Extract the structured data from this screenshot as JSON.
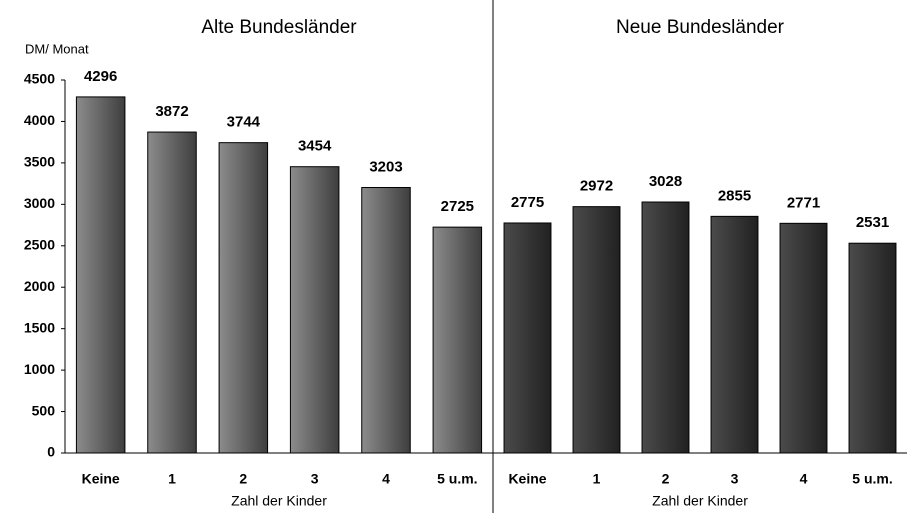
{
  "chart_data": [
    {
      "type": "bar",
      "title": "Alte Bundesländer",
      "y_label": "DM/ Monat",
      "x_label": "Zahl der Kinder",
      "categories": [
        "Keine",
        "1",
        "2",
        "3",
        "4",
        "5 u.m."
      ],
      "values": [
        4296,
        3872,
        3744,
        3454,
        3203,
        2725
      ],
      "color": "#707070",
      "ylim": [
        0,
        4500
      ],
      "yticks": [
        0,
        500,
        1000,
        1500,
        2000,
        2500,
        3000,
        3500,
        4000,
        4500
      ]
    },
    {
      "type": "bar",
      "title": "Neue Bundesländer",
      "x_label": "Zahl der Kinder",
      "categories": [
        "Keine",
        "1",
        "2",
        "3",
        "4",
        "5 u.m."
      ],
      "values": [
        2775,
        2972,
        3028,
        2855,
        2771,
        2531
      ],
      "color": "#3c3c3c",
      "ylim": [
        0,
        4500
      ]
    }
  ]
}
